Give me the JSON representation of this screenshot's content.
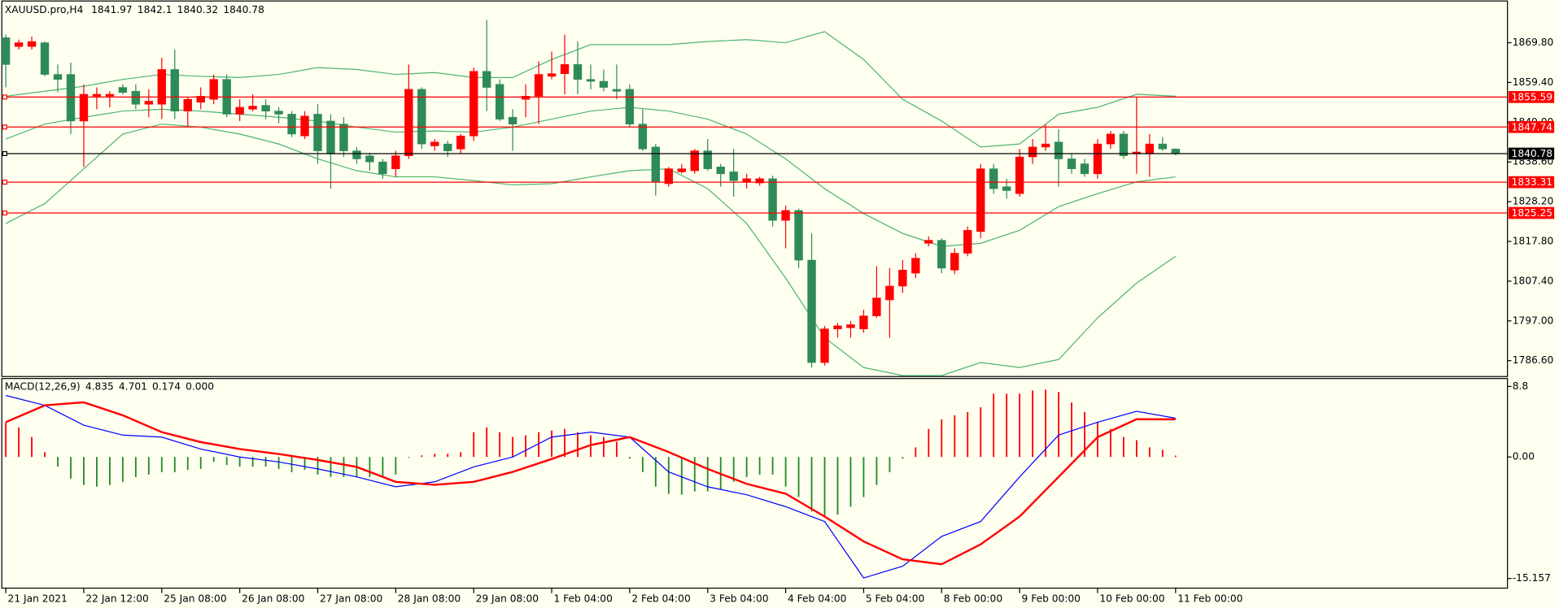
{
  "chart_data": [
    {
      "type": "candlestick",
      "title": "XAUUSD.pro,H4",
      "open": [
        1871.1,
        1868.8,
        1868.8,
        1869.8,
        1861.5,
        1861.5,
        1849.3,
        1855.8,
        1855.8,
        1858.1,
        1857.1,
        1853.7,
        1853.7,
        1862.8,
        1851.9,
        1854.2,
        1855.0,
        1860.2,
        1851.1,
        1852.4,
        1853.4,
        1851.9,
        1851.1,
        1845.4,
        1851.1,
        1849.3,
        1848.5,
        1841.5,
        1840.2,
        1838.6,
        1836.8,
        1840.2,
        1857.6,
        1842.8,
        1843.3,
        1842.0,
        1845.4,
        1862.3,
        1858.9,
        1850.3,
        1855.0,
        1855.8,
        1861.0,
        1861.7,
        1864.1,
        1860.2,
        1859.7,
        1857.6,
        1857.6,
        1848.5,
        1842.5,
        1832.9,
        1836.0,
        1836.3,
        1841.5,
        1837.3,
        1836.0,
        1833.4,
        1833.1,
        1834.2,
        1823.3,
        1825.9,
        1812.9,
        1786.1,
        1794.9,
        1795.2,
        1794.9,
        1798.3,
        1802.5,
        1806.1,
        1809.5,
        1817.3,
        1818.1,
        1810.3,
        1814.7,
        1820.4,
        1836.8,
        1832.1,
        1830.3,
        1839.9,
        1842.5,
        1843.8,
        1839.4,
        1838.1,
        1835.5,
        1843.3,
        1845.9,
        1840.7,
        1840.7,
        1843.3,
        1841.97
      ],
      "high": [
        1871.9,
        1870.6,
        1871.4,
        1870.1,
        1864.1,
        1864.6,
        1858.9,
        1858.1,
        1857.1,
        1858.9,
        1858.9,
        1857.6,
        1865.9,
        1868.0,
        1855.5,
        1858.1,
        1861.5,
        1861.5,
        1855.0,
        1856.3,
        1855.0,
        1852.9,
        1851.9,
        1851.9,
        1853.7,
        1851.1,
        1850.3,
        1842.5,
        1841.0,
        1839.4,
        1841.5,
        1864.1,
        1858.1,
        1844.6,
        1844.1,
        1845.9,
        1863.3,
        1875.8,
        1860.2,
        1852.4,
        1858.9,
        1864.9,
        1867.5,
        1871.9,
        1870.1,
        1864.1,
        1862.8,
        1864.1,
        1858.9,
        1852.4,
        1843.3,
        1837.3,
        1838.1,
        1842.0,
        1844.6,
        1838.1,
        1842.0,
        1835.5,
        1834.7,
        1835.0,
        1827.2,
        1826.4,
        1819.9,
        1795.7,
        1796.5,
        1797.0,
        1799.9,
        1811.3,
        1810.8,
        1812.9,
        1814.7,
        1819.1,
        1818.6,
        1816.0,
        1821.7,
        1838.1,
        1838.1,
        1834.2,
        1842.0,
        1844.6,
        1848.5,
        1847.2,
        1840.7,
        1839.4,
        1844.6,
        1846.7,
        1846.7,
        1855.5,
        1845.9,
        1845.1,
        1842.1
      ],
      "low": [
        1858.1,
        1868.0,
        1868.0,
        1861.0,
        1856.8,
        1845.9,
        1837.3,
        1852.4,
        1852.9,
        1856.3,
        1852.4,
        1850.3,
        1849.8,
        1849.8,
        1847.7,
        1852.4,
        1853.7,
        1850.3,
        1849.3,
        1851.9,
        1849.8,
        1848.7,
        1845.1,
        1844.6,
        1838.1,
        1831.6,
        1839.9,
        1838.1,
        1836.3,
        1834.2,
        1834.7,
        1839.4,
        1842.0,
        1841.5,
        1839.9,
        1840.7,
        1844.1,
        1851.9,
        1849.3,
        1841.5,
        1850.3,
        1848.5,
        1860.2,
        1856.3,
        1856.3,
        1857.6,
        1857.1,
        1855.0,
        1847.7,
        1841.5,
        1829.8,
        1832.1,
        1835.5,
        1835.5,
        1836.3,
        1832.1,
        1829.5,
        1831.6,
        1832.4,
        1821.7,
        1816.0,
        1810.8,
        1784.8,
        1785.3,
        1792.6,
        1792.6,
        1793.9,
        1797.8,
        1792.6,
        1804.3,
        1808.2,
        1816.5,
        1809.5,
        1809.2,
        1813.9,
        1818.6,
        1830.3,
        1829.0,
        1829.5,
        1838.1,
        1841.5,
        1832.1,
        1835.5,
        1834.7,
        1834.2,
        1842.0,
        1839.4,
        1835.5,
        1834.7,
        1841.5,
        1840.32
      ],
      "close": [
        1864.1,
        1869.8,
        1870.1,
        1861.5,
        1860.2,
        1849.3,
        1856.3,
        1856.3,
        1856.3,
        1856.8,
        1853.7,
        1854.5,
        1862.8,
        1851.9,
        1855.0,
        1855.8,
        1860.2,
        1851.1,
        1852.9,
        1853.2,
        1851.9,
        1851.1,
        1845.9,
        1850.6,
        1841.5,
        1840.7,
        1841.5,
        1839.4,
        1838.6,
        1835.5,
        1840.2,
        1857.6,
        1843.3,
        1843.8,
        1841.5,
        1845.4,
        1862.3,
        1858.1,
        1849.8,
        1848.5,
        1855.8,
        1861.5,
        1861.7,
        1864.1,
        1860.2,
        1859.7,
        1858.1,
        1857.1,
        1848.5,
        1842.0,
        1833.4,
        1836.8,
        1836.8,
        1841.5,
        1836.8,
        1835.5,
        1833.7,
        1834.2,
        1834.2,
        1823.3,
        1825.9,
        1812.9,
        1786.1,
        1794.9,
        1795.7,
        1796.0,
        1798.3,
        1803.0,
        1806.1,
        1810.3,
        1813.4,
        1818.1,
        1810.8,
        1814.7,
        1820.7,
        1836.8,
        1831.6,
        1831.1,
        1839.9,
        1842.5,
        1843.3,
        1839.4,
        1836.8,
        1835.5,
        1843.3,
        1845.9,
        1840.2,
        1841.2,
        1843.3,
        1842.0,
        1840.78
      ],
      "up_color": "#ff0000",
      "down_color": "#2e8b57",
      "bollinger": {
        "color": "#4cb56e",
        "x": [
          0,
          3,
          6,
          9,
          12,
          15,
          18,
          21,
          24,
          27,
          30,
          33,
          36,
          39,
          42,
          45,
          48,
          51,
          54,
          57,
          60,
          63,
          66,
          69,
          72,
          75,
          78,
          81,
          84,
          87,
          90
        ],
        "upper": [
          1855.8,
          1857.1,
          1858.4,
          1860.2,
          1861.5,
          1861.0,
          1860.7,
          1861.5,
          1863.3,
          1862.8,
          1861.5,
          1862.0,
          1860.7,
          1860.7,
          1865.4,
          1869.3,
          1869.3,
          1869.3,
          1870.1,
          1870.6,
          1869.8,
          1872.7,
          1865.4,
          1855.0,
          1849.3,
          1842.5,
          1843.3,
          1851.1,
          1852.9,
          1856.3,
          1855.8
        ],
        "middle": [
          1844.6,
          1848.5,
          1850.3,
          1851.9,
          1852.4,
          1851.9,
          1851.1,
          1850.3,
          1849.3,
          1847.7,
          1846.4,
          1846.7,
          1846.4,
          1847.7,
          1849.8,
          1851.9,
          1852.9,
          1851.9,
          1849.8,
          1845.9,
          1839.4,
          1831.6,
          1825.1,
          1819.9,
          1816.5,
          1817.3,
          1820.7,
          1826.9,
          1830.3,
          1833.4,
          1834.7
        ],
        "lower": [
          1822.5,
          1827.7,
          1836.8,
          1845.9,
          1848.5,
          1847.7,
          1845.9,
          1843.3,
          1839.4,
          1836.3,
          1834.7,
          1834.7,
          1833.7,
          1832.6,
          1832.9,
          1834.7,
          1836.3,
          1836.8,
          1831.6,
          1822.5,
          1808.2,
          1792.6,
          1784.8,
          1782.7,
          1782.7,
          1786.1,
          1784.8,
          1786.9,
          1797.8,
          1806.9,
          1813.9
        ]
      },
      "levels": [
        {
          "value": 1855.59,
          "color": "#ff0000"
        },
        {
          "value": 1847.74,
          "color": "#ff0000"
        },
        {
          "value": 1840.78,
          "color": "#000000"
        },
        {
          "value": 1833.31,
          "color": "#ff0000"
        },
        {
          "value": 1825.25,
          "color": "#ff0000"
        }
      ],
      "ylim": [
        1782.44,
        1880.46
      ],
      "yticks": [
        {
          "value": 1869.8,
          "label": "1869.80"
        },
        {
          "value": 1859.4,
          "label": "1859.40"
        },
        {
          "value": 1849.0,
          "label": "1849.00"
        },
        {
          "value": 1838.6,
          "label": "1838.60"
        },
        {
          "value": 1828.2,
          "label": "1828.20"
        },
        {
          "value": 1817.8,
          "label": "1817.80"
        },
        {
          "value": 1807.4,
          "label": "1807.40"
        },
        {
          "value": 1797.0,
          "label": "1797.00"
        },
        {
          "value": 1786.6,
          "label": "1786.60"
        }
      ],
      "xticks": [
        {
          "value": 0,
          "label": "21 Jan 2021"
        },
        {
          "value": 6,
          "label": "22 Jan 12:00"
        },
        {
          "value": 12,
          "label": "25 Jan 08:00"
        },
        {
          "value": 18,
          "label": "26 Jan 08:00"
        },
        {
          "value": 24,
          "label": "27 Jan 08:00"
        },
        {
          "value": 30,
          "label": "28 Jan 08:00"
        },
        {
          "value": 36,
          "label": "29 Jan 08:00"
        },
        {
          "value": 42,
          "label": "1 Feb 04:00"
        },
        {
          "value": 48,
          "label": "2 Feb 04:00"
        },
        {
          "value": 54,
          "label": "3 Feb 04:00"
        },
        {
          "value": 60,
          "label": "4 Feb 04:00"
        },
        {
          "value": 66,
          "label": "5 Feb 04:00"
        },
        {
          "value": 72,
          "label": "8 Feb 00:00"
        },
        {
          "value": 78,
          "label": "9 Feb 00:00"
        },
        {
          "value": 84,
          "label": "10 Feb 00:00"
        },
        {
          "value": 90,
          "label": "11 Feb 00:00"
        }
      ]
    },
    {
      "type": "macd",
      "title": "MACD(12,26,9)",
      "histogram": [
        4.3,
        3.7,
        2.5,
        0.6,
        -1.2,
        -2.7,
        -3.5,
        -3.7,
        -3.5,
        -3.1,
        -2.5,
        -2.2,
        -1.9,
        -1.9,
        -1.6,
        -1.5,
        -0.6,
        -1.0,
        -1.2,
        -1.2,
        -1.2,
        -1.5,
        -1.9,
        -1.6,
        -2.2,
        -2.5,
        -2.5,
        -2.5,
        -2.5,
        -2.5,
        -2.2,
        -0.1,
        0.2,
        0.4,
        0.4,
        0.6,
        3.1,
        3.7,
        3.1,
        2.5,
        2.7,
        3.1,
        3.3,
        3.5,
        3.1,
        2.7,
        2.5,
        1.9,
        -0.2,
        -1.9,
        -3.7,
        -4.6,
        -4.7,
        -4.3,
        -4.3,
        -4.0,
        -3.1,
        -2.5,
        -2.2,
        -2.2,
        -3.7,
        -5.0,
        -6.8,
        -7.4,
        -7.2,
        -6.2,
        -5.0,
        -3.5,
        -1.9,
        -0.2,
        1.2,
        3.5,
        4.7,
        5.2,
        5.6,
        6.2,
        7.9,
        7.9,
        7.9,
        8.3,
        8.4,
        8.1,
        6.8,
        5.6,
        4.3,
        3.5,
        2.5,
        2.1,
        1.2,
        0.9,
        0.174
      ],
      "x": [
        0,
        3,
        6,
        9,
        12,
        15,
        18,
        21,
        24,
        27,
        30,
        33,
        36,
        39,
        42,
        45,
        48,
        51,
        54,
        57,
        60,
        63,
        66,
        69,
        72,
        75,
        78,
        81,
        84,
        87,
        90
      ],
      "macd": [
        7.68,
        6.44,
        3.97,
        2.73,
        2.48,
        0.99,
        0,
        -0.62,
        -1.49,
        -2.48,
        -3.72,
        -3.1,
        -1.24,
        0,
        2.48,
        3.1,
        2.48,
        -1.86,
        -3.72,
        -4.71,
        -6.2,
        -8.05,
        -15.09,
        -13.63,
        -9.91,
        -8.05,
        -2.48,
        2.73,
        4.34,
        5.7,
        4.835
      ],
      "signal": [
        4.34,
        6.44,
        6.82,
        5.2,
        3.1,
        1.86,
        0.99,
        0.37,
        -0.37,
        -1.24,
        -3.1,
        -3.47,
        -3.1,
        -1.86,
        -0.25,
        1.49,
        2.48,
        0.62,
        -1.49,
        -3.35,
        -4.58,
        -7.43,
        -10.53,
        -12.76,
        -13.38,
        -10.9,
        -7.43,
        -2.48,
        2.48,
        4.71,
        4.701
      ],
      "extra": {
        "value": 0,
        "label": "0.000"
      },
      "up_color": "#ff0000",
      "down_color": "#228b22",
      "macd_color": "#0000ff",
      "signal_color": "#ff0000",
      "ylim": [
        -16.36,
        9.79
      ],
      "yticks": [
        8.8,
        {
          "value": 0,
          "label": "0.00"
        },
        -15.157
      ]
    }
  ]
}
